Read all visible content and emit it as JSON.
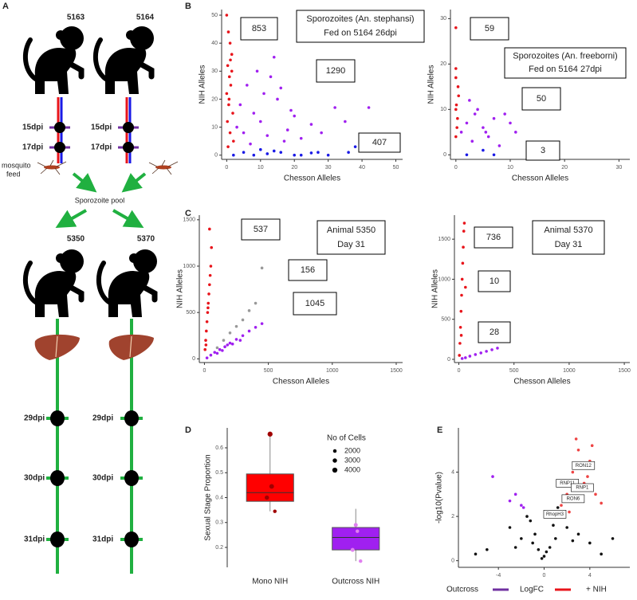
{
  "panel_labels": [
    "A",
    "B",
    "C",
    "D",
    "E"
  ],
  "diagram": {
    "donors": [
      "5163",
      "5164"
    ],
    "donor_timepoints": [
      "15dpi",
      "17dpi"
    ],
    "mosquito_label": [
      "mosquito",
      "feed"
    ],
    "pool_label": "Sporozoite pool",
    "recipients": [
      "5350",
      "5370"
    ],
    "recipient_timepoints": [
      "29dpi",
      "30dpi",
      "31dpi"
    ]
  },
  "chart_data": [
    {
      "type": "scatter",
      "xlabel": "Chesson Alleles",
      "ylabel": "NIH Alleles",
      "xlim": [
        -1.5,
        52
      ],
      "ylim": [
        -1.5,
        52
      ],
      "xticks": [
        0,
        10,
        20,
        30,
        40,
        50
      ],
      "yticks": [
        0,
        10,
        20,
        30,
        40,
        50
      ],
      "annotations": [
        "853",
        "1290",
        "407"
      ],
      "title_lines": [
        "Sporozoites (An. stephansi)",
        "Fed on 5164 26dpi"
      ],
      "series": [
        {
          "color": "#e8141b",
          "x": [
            0,
            0.5,
            1,
            1.5,
            0.3,
            0.8,
            1.2,
            0,
            0.6,
            1.8,
            0.2,
            1,
            2,
            0.4,
            1.5,
            0.7,
            1.1
          ],
          "y": [
            50,
            44,
            40,
            36,
            32,
            28,
            25,
            22,
            18,
            15,
            12,
            8,
            5,
            3,
            30,
            20,
            34
          ]
        },
        {
          "color": "#a020f0",
          "x": [
            3,
            5,
            8,
            10,
            12,
            15,
            18,
            20,
            22,
            25,
            6,
            9,
            14,
            17,
            28,
            35,
            4,
            11,
            7,
            13,
            32,
            42,
            16,
            19
          ],
          "y": [
            10,
            8,
            15,
            12,
            7,
            20,
            9,
            14,
            6,
            11,
            25,
            30,
            35,
            5,
            8,
            12,
            18,
            22,
            4,
            28,
            17,
            17,
            24,
            16
          ]
        },
        {
          "color": "#1a1ae6",
          "x": [
            2,
            5,
            8,
            12,
            16,
            20,
            25,
            30,
            36,
            38,
            10,
            22,
            14,
            27
          ],
          "y": [
            0,
            1,
            0,
            0.5,
            1,
            0,
            0.8,
            0,
            1,
            3,
            2,
            0,
            1.5,
            1
          ]
        }
      ]
    },
    {
      "type": "scatter",
      "xlabel": "Chesson Alleles",
      "ylabel": "NIH Alleles",
      "xlim": [
        -1,
        32
      ],
      "ylim": [
        -1,
        32
      ],
      "xticks": [
        0,
        10,
        20,
        30
      ],
      "yticks": [
        0,
        10,
        20,
        30
      ],
      "annotations": [
        "59",
        "50",
        "3"
      ],
      "title_lines": [
        "Sporozoites (An. freeborni)",
        "Fed on 5164 27dpi"
      ],
      "series": [
        {
          "color": "#e8141b",
          "x": [
            0,
            0,
            0,
            0.5,
            0,
            0.3,
            0.2,
            0,
            0.4,
            0.1
          ],
          "y": [
            28,
            19,
            17,
            13,
            10,
            8,
            6,
            4,
            15,
            11
          ]
        },
        {
          "color": "#a020f0",
          "x": [
            1,
            2,
            3,
            4,
            5,
            6,
            7,
            8,
            9,
            10,
            11,
            2.5,
            5.5,
            3.5
          ],
          "y": [
            5,
            7,
            3,
            10,
            6,
            4,
            8,
            2,
            9,
            7,
            5,
            12,
            5,
            9
          ]
        },
        {
          "color": "#1a1ae6",
          "x": [
            5,
            7,
            2
          ],
          "y": [
            1,
            0,
            0
          ]
        }
      ]
    },
    {
      "type": "scatter",
      "xlabel": "Chesson Alleles",
      "ylabel": "NIH Alleles",
      "xlim": [
        -40,
        1550
      ],
      "ylim": [
        -40,
        1550
      ],
      "xticks": [
        0,
        500,
        1000,
        1500
      ],
      "yticks": [
        0,
        500,
        1000,
        1500
      ],
      "annotations": [
        "537",
        "156",
        "1045"
      ],
      "title_lines": [
        "Animal 5350",
        "Day 31"
      ],
      "series": [
        {
          "color": "#e8141b",
          "x": [
            5,
            10,
            15,
            20,
            25,
            30,
            35,
            40,
            45,
            50,
            55,
            40,
            12,
            28
          ],
          "y": [
            100,
            200,
            300,
            400,
            500,
            600,
            700,
            800,
            900,
            1000,
            1200,
            1400,
            150,
            550
          ]
        },
        {
          "color": "#999999",
          "x": [
            100,
            150,
            200,
            250,
            300,
            350,
            400,
            450
          ],
          "y": [
            120,
            200,
            280,
            350,
            420,
            520,
            600,
            980
          ]
        },
        {
          "color": "#a020f0",
          "x": [
            20,
            50,
            80,
            120,
            160,
            200,
            250,
            300,
            350,
            400,
            450,
            100,
            180,
            280,
            220,
            140
          ],
          "y": [
            10,
            40,
            70,
            100,
            130,
            170,
            210,
            250,
            300,
            340,
            380,
            60,
            150,
            200,
            160,
            90
          ]
        }
      ]
    },
    {
      "type": "scatter",
      "xlabel": "Chesson Alleles",
      "ylabel": "NIH Alleles",
      "xlim": [
        -40,
        1550
      ],
      "ylim": [
        -40,
        1800
      ],
      "xticks": [
        0,
        500,
        1000,
        1500
      ],
      "yticks": [
        0,
        500,
        1000,
        1500
      ],
      "annotations": [
        "736",
        "10",
        "28"
      ],
      "title_lines": [
        "Animal 5370",
        "Day 31"
      ],
      "series": [
        {
          "color": "#e8141b",
          "x": [
            5,
            10,
            15,
            20,
            25,
            30,
            35,
            40,
            45,
            50,
            60,
            22
          ],
          "y": [
            50,
            200,
            400,
            600,
            800,
            1000,
            1200,
            1400,
            1600,
            1700,
            900,
            300
          ]
        },
        {
          "color": "#a020f0",
          "x": [
            30,
            60,
            100,
            150,
            200,
            250,
            300,
            350
          ],
          "y": [
            10,
            20,
            40,
            60,
            80,
            100,
            120,
            140
          ]
        }
      ]
    },
    {
      "type": "box",
      "ylabel": "Sexual Stage Proportion",
      "categories": [
        "Mono NIH",
        "Outcross NIH"
      ],
      "ylim": [
        0.12,
        0.68
      ],
      "yticks": [
        0.2,
        0.3,
        0.4,
        0.5,
        0.6
      ],
      "size_legend": {
        "title": "No of Cells",
        "values": [
          2000,
          3000,
          4000
        ]
      },
      "series": [
        {
          "color": "#ff0000",
          "point_color": "#a00000",
          "q1": 0.385,
          "median": 0.42,
          "q3": 0.495,
          "whisker_low": 0.345,
          "whisker_high": 0.655,
          "points": {
            "y": [
              0.655,
              0.445,
              0.4,
              0.345
            ],
            "size": [
              4000,
              3500,
              3000,
              2000
            ]
          }
        },
        {
          "color": "#a020f0",
          "point_color": "#e080f0",
          "q1": 0.19,
          "median": 0.24,
          "q3": 0.28,
          "whisker_low": 0.145,
          "whisker_high": 0.355,
          "points": {
            "y": [
              0.29,
              0.265,
              0.19,
              0.145
            ],
            "size": [
              2500,
              2000,
              2500,
              2000
            ]
          }
        }
      ]
    },
    {
      "type": "volcano",
      "ylabel": "-log10(Pvalue)",
      "bottom_labels": [
        "Outcross",
        "LogFC",
        "+ NIH"
      ],
      "xlim": [
        -7.5,
        7.5
      ],
      "ylim": [
        -0.3,
        6
      ],
      "xticks": [
        -4,
        0,
        4
      ],
      "yticks": [
        0,
        2,
        4
      ],
      "series": [
        {
          "color": "#111111",
          "x": [
            -5,
            -3,
            -2,
            -1,
            -0.5,
            0,
            0.5,
            1,
            2,
            3,
            4,
            5,
            -1.5,
            1.5,
            -0.2,
            0.2,
            6,
            -6,
            -0.8,
            0.8,
            -2.5,
            2.5,
            1.2,
            -1.2
          ],
          "y": [
            0.5,
            1.5,
            1,
            0.8,
            0.5,
            0.2,
            0.6,
            1,
            1.5,
            1.2,
            0.8,
            0.3,
            2,
            2.2,
            0.1,
            0.4,
            1,
            0.3,
            1.2,
            1.6,
            0.6,
            0.9,
            2.4,
            1.8
          ]
        },
        {
          "color": "#ee4444",
          "x": [
            1.5,
            2,
            2.5,
            3,
            3.5,
            4,
            4.5,
            5,
            2.8,
            3.8,
            2.2,
            3.2,
            4.2,
            1.8
          ],
          "y": [
            2.5,
            3,
            4,
            5,
            3.5,
            4.5,
            3,
            2.6,
            5.5,
            3.8,
            2.2,
            4.2,
            5.2,
            3.4
          ]
        },
        {
          "color": "#a020f0",
          "x": [
            -2,
            -2.5,
            -3,
            -4.5,
            -1.8
          ],
          "y": [
            2.5,
            3,
            2.7,
            3.8,
            2.4
          ]
        }
      ],
      "gene_labels": [
        {
          "text": "RON12",
          "x": 3.3,
          "y": 4.3
        },
        {
          "text": "RNP11",
          "x": 1.9,
          "y": 3.5
        },
        {
          "text": "RNP1",
          "x": 3.2,
          "y": 3.3
        },
        {
          "text": "RON6",
          "x": 2.4,
          "y": 2.8
        },
        {
          "text": "RhopH3",
          "x": 0.8,
          "y": 2.1
        }
      ]
    }
  ]
}
